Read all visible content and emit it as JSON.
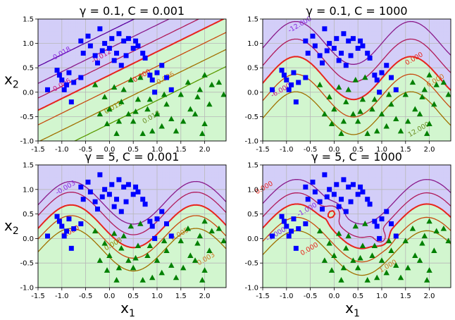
{
  "colors": {
    "class0_fill": "#d3cef8",
    "class1_fill": "#d2f6cf",
    "class0_marker": "#0000ff",
    "class1_marker": "#008000",
    "boundary": "#e8251c",
    "grid": "#b8b8b8"
  },
  "chart_data": [
    {
      "type": "scatter",
      "title": "γ = 0.1, C = 0.001",
      "xlabel": "",
      "ylabel": "x2",
      "xlim": [
        -1.5,
        2.45
      ],
      "ylim": [
        -1.0,
        1.5
      ],
      "xticks": [
        "-1.5",
        "-1.0",
        "-0.5",
        "0.0",
        "0.5",
        "1.0",
        "1.5",
        "2.0"
      ],
      "yticks": [
        "-1.0",
        "-0.5",
        "0.0",
        "0.5",
        "1.0",
        "1.5"
      ],
      "grid": true,
      "contour_labels": [
        {
          "text": "-0.018",
          "x": -1.0,
          "y": 0.75,
          "color": "#8a2be2"
        },
        {
          "text": "-0.012",
          "x": -0.15,
          "y": 0.7,
          "color": "#c71585"
        },
        {
          "text": "-0.006",
          "x": -1.0,
          "y": 0.1,
          "color": "#c71585"
        },
        {
          "text": "0.000",
          "x": 0.7,
          "y": 0.3,
          "color": "#e8251c"
        },
        {
          "text": "0.006",
          "x": 1.2,
          "y": 0.25,
          "color": "#cc7722"
        },
        {
          "text": "0.012",
          "x": 0.1,
          "y": -0.35,
          "color": "#8a8a00"
        },
        {
          "text": "0.018",
          "x": 0.9,
          "y": -0.55,
          "color": "#6b8e23"
        }
      ]
    },
    {
      "type": "scatter",
      "title": "γ = 0.1, C = 1000",
      "xlabel": "",
      "ylabel": "",
      "xlim": [
        -1.5,
        2.45
      ],
      "ylim": [
        -1.0,
        1.5
      ],
      "xticks": [
        "-1.5",
        "-1.0",
        "-0.5",
        "0.0",
        "0.5",
        "1.0",
        "1.5",
        "2.0"
      ],
      "yticks": [
        "-1.0",
        "-0.5",
        "0.0",
        "0.5",
        "1.0",
        "1.5"
      ],
      "grid": true,
      "contour_labels": [
        {
          "text": "-12.000",
          "x": -0.7,
          "y": 1.35,
          "color": "#8a2be2"
        },
        {
          "text": "-6.000",
          "x": -1.1,
          "y": 0.0,
          "color": "#c71585"
        },
        {
          "text": "0.000",
          "x": 1.7,
          "y": 0.65,
          "color": "#e8251c"
        },
        {
          "text": "6.000",
          "x": 2.15,
          "y": 0.2,
          "color": "#cc7722"
        },
        {
          "text": "12.000",
          "x": 1.8,
          "y": -0.8,
          "color": "#6b8e23"
        }
      ]
    },
    {
      "type": "scatter",
      "title": "γ = 5, C = 0.001",
      "xlabel": "x1",
      "ylabel": "x2",
      "xlim": [
        -1.5,
        2.45
      ],
      "ylim": [
        -1.0,
        1.5
      ],
      "xticks": [
        "-1.5",
        "-1.0",
        "-0.5",
        "0.0",
        "0.5",
        "1.0",
        "1.5",
        "2.0"
      ],
      "yticks": [
        "-1.0",
        "-0.5",
        "0.0",
        "0.5",
        "1.0",
        "1.5"
      ],
      "grid": true,
      "contour_labels": [
        {
          "text": "-0.003",
          "x": -0.9,
          "y": 1.0,
          "color": "#8a2be2"
        },
        {
          "text": "0.000",
          "x": -0.8,
          "y": 0.1,
          "color": "#e8251c"
        },
        {
          "text": "0.008",
          "x": 0.1,
          "y": -0.15,
          "color": "#8a8a00"
        },
        {
          "text": "0.005",
          "x": 1.5,
          "y": 0.05,
          "color": "#cc7722"
        },
        {
          "text": "0.003",
          "x": 2.05,
          "y": -0.45,
          "color": "#cc7722"
        }
      ]
    },
    {
      "type": "scatter",
      "title": "γ = 5, C = 1000",
      "xlabel": "x1",
      "ylabel": "",
      "xlim": [
        -1.5,
        2.45
      ],
      "ylim": [
        -1.0,
        1.5
      ],
      "xticks": [
        "-1.5",
        "-1.0",
        "-0.5",
        "0.0",
        "0.5",
        "1.0",
        "1.5",
        "2.0"
      ],
      "yticks": [
        "-1.0",
        "-0.5",
        "0.0",
        "0.5",
        "1.0",
        "1.5"
      ],
      "grid": true,
      "contour_labels": [
        {
          "text": "0.000",
          "x": -1.45,
          "y": 1.0,
          "color": "#e8251c"
        },
        {
          "text": "-1.000",
          "x": -0.55,
          "y": 0.55,
          "color": "#8a2be2"
        },
        {
          "text": "-1.000",
          "x": -1.2,
          "y": 0.05,
          "color": "#8a2be2"
        },
        {
          "text": "0.000",
          "x": -0.5,
          "y": -0.25,
          "color": "#e8251c"
        },
        {
          "text": "1.000",
          "x": 1.15,
          "y": -0.6,
          "color": "#cc7722"
        }
      ]
    }
  ],
  "points": {
    "class0": [
      [
        -0.2,
        1.3
      ],
      [
        -0.1,
        1.0
      ],
      [
        0.05,
        1.1
      ],
      [
        0.3,
        1.05
      ],
      [
        -0.4,
        0.95
      ],
      [
        0.15,
        0.8
      ],
      [
        0.5,
        0.9
      ],
      [
        0.2,
        1.2
      ],
      [
        -0.6,
        1.05
      ],
      [
        -0.55,
        0.8
      ],
      [
        -0.3,
        0.75
      ],
      [
        0.0,
        0.9
      ],
      [
        0.4,
        1.1
      ],
      [
        0.6,
        0.95
      ],
      [
        0.75,
        0.7
      ],
      [
        0.1,
        0.65
      ],
      [
        -0.15,
        0.85
      ],
      [
        -0.45,
        1.15
      ],
      [
        0.35,
        0.75
      ],
      [
        0.55,
        1.05
      ],
      [
        0.85,
        0.35
      ],
      [
        1.0,
        0.4
      ],
      [
        0.9,
        0.25
      ],
      [
        1.2,
        0.3
      ],
      [
        -1.0,
        0.25
      ],
      [
        -0.9,
        0.15
      ],
      [
        -1.1,
        0.45
      ],
      [
        -0.85,
        0.4
      ],
      [
        -0.75,
        0.2
      ],
      [
        -0.6,
        0.3
      ],
      [
        -0.8,
        -0.2
      ],
      [
        -1.3,
        0.05
      ],
      [
        -1.05,
        0.35
      ],
      [
        0.25,
        0.55
      ],
      [
        -0.25,
        0.6
      ],
      [
        0.7,
        0.8
      ],
      [
        1.1,
        0.55
      ],
      [
        1.3,
        0.05
      ],
      [
        0.95,
        0.0
      ],
      [
        -0.95,
        0.05
      ]
    ],
    "class1": [
      [
        2.0,
        0.35
      ],
      [
        1.9,
        0.05
      ],
      [
        1.85,
        -0.1
      ],
      [
        2.1,
        -0.25
      ],
      [
        1.7,
        -0.35
      ],
      [
        1.5,
        -0.05
      ],
      [
        1.2,
        -0.25
      ],
      [
        1.0,
        -0.45
      ],
      [
        1.1,
        -0.7
      ],
      [
        0.8,
        -0.35
      ],
      [
        0.6,
        -0.15
      ],
      [
        0.4,
        -0.45
      ],
      [
        0.2,
        -0.6
      ],
      [
        0.0,
        -0.35
      ],
      [
        -0.1,
        -0.1
      ],
      [
        -0.3,
        0.15
      ],
      [
        0.1,
        0.1
      ],
      [
        0.3,
        0.05
      ],
      [
        0.5,
        -0.6
      ],
      [
        0.7,
        -0.85
      ],
      [
        0.9,
        -0.8
      ],
      [
        1.3,
        -0.55
      ],
      [
        1.55,
        -0.6
      ],
      [
        1.8,
        -0.45
      ],
      [
        2.0,
        -0.65
      ],
      [
        2.3,
        0.2
      ],
      [
        2.15,
        0.15
      ],
      [
        0.45,
        0.25
      ],
      [
        0.65,
        0.3
      ],
      [
        -0.05,
        -0.65
      ],
      [
        0.15,
        -0.85
      ],
      [
        0.55,
        -0.4
      ],
      [
        1.4,
        -0.8
      ],
      [
        1.65,
        0.2
      ],
      [
        1.15,
        -0.05
      ],
      [
        0.85,
        -0.15
      ],
      [
        0.25,
        -0.2
      ],
      [
        -0.2,
        -0.45
      ],
      [
        1.95,
        -0.85
      ],
      [
        2.4,
        -0.05
      ]
    ]
  }
}
